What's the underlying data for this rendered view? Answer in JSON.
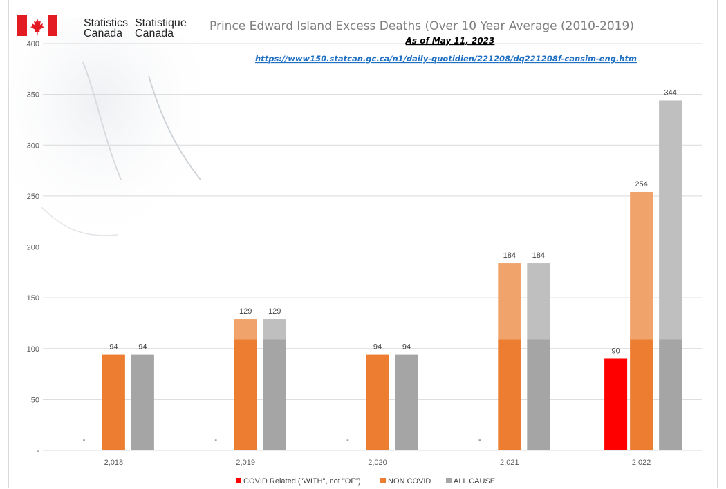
{
  "header": {
    "org_en_line1": "Statistics",
    "org_en_line2": "Canada",
    "org_fr_line1": "Statistique",
    "org_fr_line2": "Canada"
  },
  "colors": {
    "covid": "#ff0000",
    "non_covid_base": "#ed7d31",
    "non_covid_excess": "#f0a46c",
    "all_cause_base": "#a5a5a5",
    "all_cause_excess": "#bfbfbf",
    "flag_red": "#e31b23"
  },
  "chart_data": {
    "type": "bar",
    "title": "Prince Edward Island Excess Deaths (Over 10 Year Average (2010-2019)",
    "subtitle": "As of May 11, 2023",
    "source_link": "https://www150.statcan.gc.ca/n1/daily-quotidien/221208/dq221208f-cansim-eng.htm",
    "categories": [
      "2,018",
      "2,019",
      "2,020",
      "2,021",
      "2,022"
    ],
    "ylim": [
      0,
      400
    ],
    "y_ticks": [
      {
        "value": 0,
        "label": "-"
      },
      {
        "value": 50,
        "label": "50"
      },
      {
        "value": 100,
        "label": "100"
      },
      {
        "value": 150,
        "label": "150"
      },
      {
        "value": 200,
        "label": "200"
      },
      {
        "value": 250,
        "label": "250"
      },
      {
        "value": 300,
        "label": "300"
      },
      {
        "value": 350,
        "label": "350"
      },
      {
        "value": 400,
        "label": "400"
      }
    ],
    "stack_base": 109,
    "grid": true,
    "legend_position": "bottom",
    "series": [
      {
        "name": "COVID Related (\"WITH\", not \"OF\")",
        "values": [
          0,
          0,
          0,
          0,
          90
        ],
        "labels": [
          "-",
          "-",
          "-",
          "-",
          "90"
        ]
      },
      {
        "name": "NON COVID",
        "values": [
          94,
          129,
          94,
          184,
          254
        ],
        "labels": [
          "94",
          "129",
          "94",
          "184",
          "254"
        ]
      },
      {
        "name": "ALL CAUSE",
        "values": [
          94,
          129,
          94,
          184,
          344
        ],
        "labels": [
          "94",
          "129",
          "94",
          "184",
          "344"
        ]
      }
    ]
  }
}
